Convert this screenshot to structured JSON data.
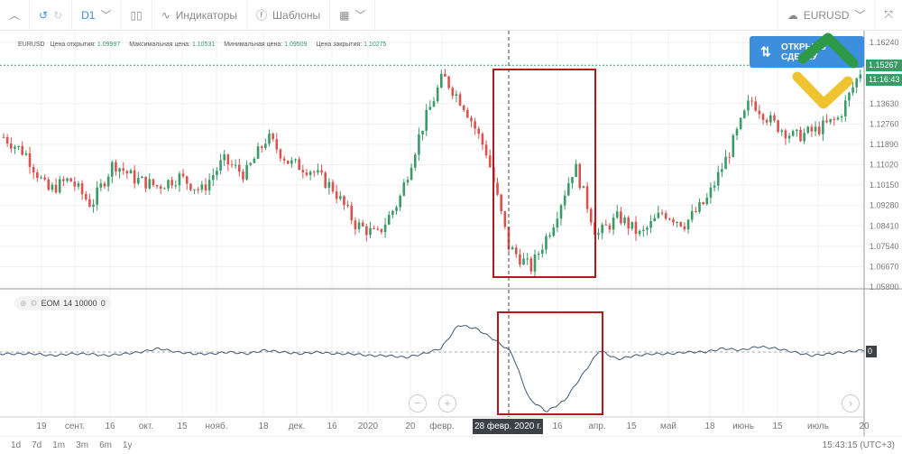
{
  "toolbar": {
    "period": "D1",
    "indicators": "Индикаторы",
    "templates": "Шаблоны",
    "symbol": "EURUSD"
  },
  "legend": {
    "symbol": "EURUSD",
    "open_label": "Цена открытия:",
    "open": "1.09997",
    "high_label": "Максимальная цена:",
    "high": "1.10531",
    "low_label": "Минимальная цена:",
    "low": "1.09509",
    "close_label": "Цена закрытия:",
    "close": "1.10275"
  },
  "open_button": "ОТКРЫТЬ СДЕЛКУ",
  "price_axis": [
    "1.16240",
    "1.13630",
    "1.12760",
    "1.11890",
    "1.11020",
    "1.10150",
    "1.09280",
    "1.08410",
    "1.07540",
    "1.06670",
    "1.05800"
  ],
  "current_price": "1.15267",
  "countdown": "11:16:43",
  "indicator": {
    "name": "EOM",
    "params": "14 10000",
    "value": "0",
    "axis_value": "0"
  },
  "time_axis": [
    "19",
    "сент.",
    "16",
    "окт.",
    "15",
    "нояб.",
    "18",
    "дек.",
    "16",
    "2020",
    "20",
    "февр.",
    "16",
    "апр.",
    "15",
    "май",
    "18",
    "июнь",
    "15",
    "июль",
    "20"
  ],
  "crosshair_date": "28 февр. 2020 г.",
  "ranges": [
    "1d",
    "7d",
    "1m",
    "3m",
    "6m",
    "1y"
  ],
  "clock": "15:43:15 (UTC+3)",
  "colors": {
    "up": "#3a9a68",
    "down": "#d9534f",
    "accent": "#3b8fdc",
    "highlight": "#b01c1c"
  },
  "price_path": [
    1.122,
    1.115,
    1.099,
    1.104,
    1.093,
    1.111,
    1.104,
    1.101,
    1.105,
    1.099,
    1.112,
    1.106,
    1.122,
    1.111,
    1.108,
    1.1,
    1.085,
    1.08,
    1.095,
    1.125,
    1.148,
    1.135,
    1.115,
    1.075,
    1.066,
    1.085,
    1.11,
    1.08,
    1.088,
    1.08,
    1.09,
    1.085,
    1.095,
    1.115,
    1.138,
    1.128,
    1.122,
    1.125,
    1.13,
    1.15
  ],
  "eom_path": [
    0,
    0,
    0,
    -1,
    0,
    0,
    -1,
    0,
    1,
    3,
    1,
    0,
    0,
    1,
    0,
    2,
    1,
    0,
    1,
    0,
    0,
    -1,
    -1,
    -2,
    0,
    3,
    16,
    14,
    8,
    1,
    -25,
    -32,
    -26,
    -12,
    2,
    -3,
    -1,
    0,
    0,
    1,
    1,
    3,
    2,
    4,
    3,
    1,
    -1,
    0,
    1,
    2
  ]
}
